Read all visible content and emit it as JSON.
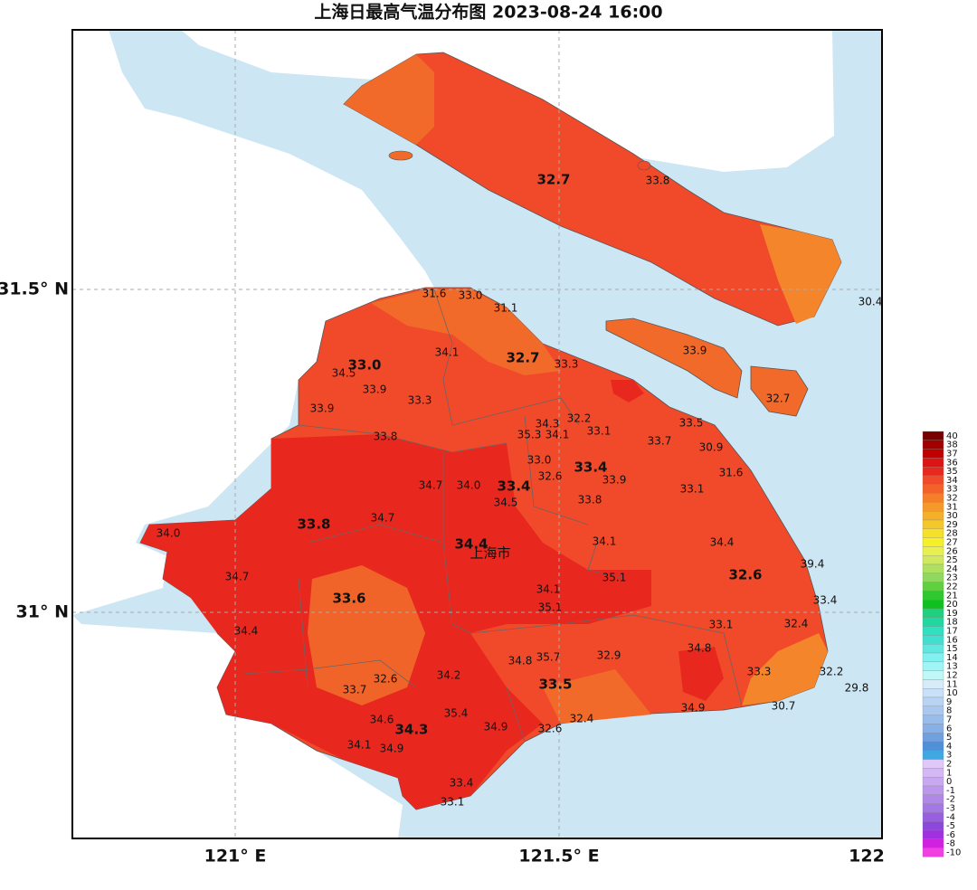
{
  "title": "上海日最高气温分布图 2023-08-24 16:00",
  "lon_labels": [
    "121° E",
    "121.5° E",
    "122"
  ],
  "lat_labels": [
    "31.5° N",
    "31° N"
  ],
  "city_label": "上海市",
  "district_values": [
    "32.7",
    "33.0",
    "32.7",
    "33.4",
    "33.4",
    "33.8",
    "34.4",
    "32.6",
    "33.6",
    "33.5",
    "34.3"
  ],
  "station_values": [
    "31.6",
    "33.0",
    "31.1",
    "33.8",
    "30.4",
    "34.1",
    "34.5",
    "33.9",
    "33.3",
    "33.3",
    "33.9",
    "32.7",
    "33.9",
    "34.3",
    "32.2",
    "35.3",
    "34.1",
    "33.1",
    "33.5",
    "33.8",
    "33.7",
    "30.9",
    "33.0",
    "32.6",
    "33.9",
    "31.6",
    "34.7",
    "34.0",
    "33.1",
    "34.5",
    "33.8",
    "34.0",
    "34.7",
    "34.1",
    "34.4",
    "39.4",
    "34.7",
    "34.1",
    "35.1",
    "33.4",
    "35.1",
    "33.1",
    "32.4",
    "34.4",
    "34.8",
    "35.7",
    "32.9",
    "34.8",
    "33.3",
    "32.2",
    "32.6",
    "34.2",
    "33.7",
    "29.8",
    "30.7",
    "34.9",
    "35.4",
    "34.6",
    "32.4",
    "34.9",
    "32.6",
    "34.1",
    "34.9",
    "33.4",
    "33.1"
  ],
  "legend": [
    {
      "label": 40,
      "color": "#7a0000"
    },
    {
      "label": 38,
      "color": "#a00000"
    },
    {
      "label": 37,
      "color": "#c00000"
    },
    {
      "label": 36,
      "color": "#dc1414"
    },
    {
      "label": 35,
      "color": "#e8281f"
    },
    {
      "label": 34,
      "color": "#f04a2a"
    },
    {
      "label": 33,
      "color": "#f2622a"
    },
    {
      "label": 32,
      "color": "#f57e2a"
    },
    {
      "label": 31,
      "color": "#f59a2a"
    },
    {
      "label": 30,
      "color": "#f5b02a"
    },
    {
      "label": 29,
      "color": "#f5c82a"
    },
    {
      "label": 28,
      "color": "#f5e02a"
    },
    {
      "label": 27,
      "color": "#f5f02a"
    },
    {
      "label": 26,
      "color": "#e8f050"
    },
    {
      "label": 25,
      "color": "#d0e860"
    },
    {
      "label": 24,
      "color": "#b0e060"
    },
    {
      "label": 23,
      "color": "#90d860"
    },
    {
      "label": 22,
      "color": "#60d040"
    },
    {
      "label": 21,
      "color": "#30c830"
    },
    {
      "label": 20,
      "color": "#10c020"
    },
    {
      "label": 19,
      "color": "#20d080"
    },
    {
      "label": 18,
      "color": "#20d8a0"
    },
    {
      "label": 17,
      "color": "#30e0c0"
    },
    {
      "label": 16,
      "color": "#40e0d0"
    },
    {
      "label": 15,
      "color": "#60e8e0"
    },
    {
      "label": 14,
      "color": "#80f0f0"
    },
    {
      "label": 13,
      "color": "#a0f4f4"
    },
    {
      "label": 12,
      "color": "#c0f8f8"
    },
    {
      "label": 11,
      "color": "#d8ecf8"
    },
    {
      "label": 10,
      "color": "#c8e0f8"
    },
    {
      "label": 9,
      "color": "#b8d4f4"
    },
    {
      "label": 8,
      "color": "#a8c8f0"
    },
    {
      "label": 7,
      "color": "#98bcec"
    },
    {
      "label": 6,
      "color": "#88b0e8"
    },
    {
      "label": 5,
      "color": "#70a0e0"
    },
    {
      "label": 4,
      "color": "#5090d8"
    },
    {
      "label": 3,
      "color": "#40a8e0"
    },
    {
      "label": 2,
      "color": "#e0c8f8"
    },
    {
      "label": 1,
      "color": "#d4b8f4"
    },
    {
      "label": 0,
      "color": "#c8a8f0"
    },
    {
      "label": -1,
      "color": "#bc98ec"
    },
    {
      "label": -2,
      "color": "#b088e8"
    },
    {
      "label": -3,
      "color": "#a478e4"
    },
    {
      "label": -4,
      "color": "#9860e0"
    },
    {
      "label": -5,
      "color": "#8c48dc"
    },
    {
      "label": -6,
      "color": "#a030e0"
    },
    {
      "label": -8,
      "color": "#d020e0"
    },
    {
      "label": -10,
      "color": "#f040e0"
    }
  ]
}
